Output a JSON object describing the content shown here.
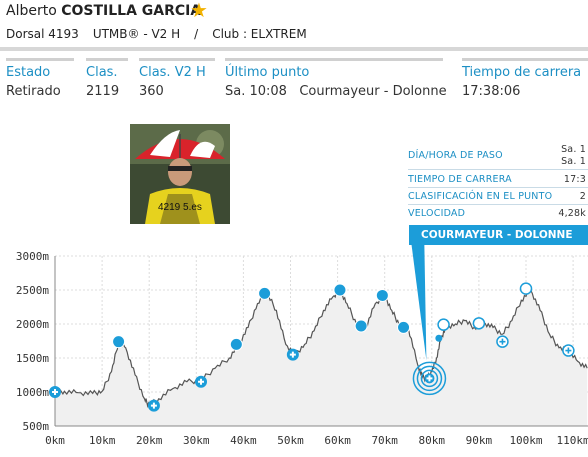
{
  "runner": {
    "first_name": "Alberto",
    "last_name": "COSTILLA GARCIA",
    "dorsal": "Dorsal 4193",
    "race": "UTMB® - V2 H",
    "separator": "/",
    "club": "Club : ELXTREM"
  },
  "stats": [
    {
      "label": "Estado",
      "value": "Retirado"
    },
    {
      "label": "Clas.",
      "value": "2119"
    },
    {
      "label": "Clas. V2 H",
      "value": "360"
    },
    {
      "label": "Último punto",
      "value": "Sa. 10:08   Courmayeur - Dolonne"
    },
    {
      "label": "Tiempo de carrera",
      "value": "17:38:06"
    }
  ],
  "info_panel": {
    "rows": [
      {
        "key": "DÍA/HORA DE PASO",
        "value": "Sa. 1\nSa. 1"
      },
      {
        "key": "TIEMPO DE CARRERA",
        "value": "17:3"
      },
      {
        "key": "CLASIFICACIÓN EN EL PUNTO",
        "value": "2"
      },
      {
        "key": "VELOCIDAD",
        "value": "4,28k"
      }
    ],
    "banner": "COURMAYEUR - DOLONNE"
  },
  "colors": {
    "accent": "#1c9dd9",
    "label_blue": "#1c8fc4",
    "star": "#f2b200"
  },
  "chart_data": {
    "type": "area",
    "title": "",
    "xlabel": "",
    "ylabel": "",
    "xlim": [
      0,
      113
    ],
    "ylim": [
      500,
      3000
    ],
    "y_ticks": [
      "3000m",
      "2500m",
      "2000m",
      "1500m",
      "1000m",
      "500m"
    ],
    "y_tick_values": [
      3000,
      2500,
      2000,
      1500,
      1000,
      500
    ],
    "x_ticks": [
      "0km",
      "10km",
      "20km",
      "30km",
      "40km",
      "50km",
      "60km",
      "70km",
      "80km",
      "90km",
      "100km",
      "110km"
    ],
    "x_tick_values": [
      0,
      10,
      20,
      30,
      40,
      50,
      60,
      70,
      80,
      90,
      100,
      110
    ],
    "series": [
      {
        "x": [
          0,
          2,
          5,
          8,
          10,
          12,
          13.5,
          15,
          17,
          19,
          20,
          22,
          25,
          28,
          31,
          34,
          37,
          39,
          41,
          43,
          45,
          47,
          49,
          51,
          53,
          55,
          57,
          59,
          60.5,
          62,
          64,
          66,
          68,
          70,
          71.5,
          73,
          75,
          77,
          78,
          79,
          80,
          81,
          82,
          83,
          85,
          87,
          89,
          91,
          93,
          95,
          97,
          99,
          101,
          103,
          105,
          107,
          109,
          111,
          113
        ],
        "y": [
          1000,
          1010,
          990,
          980,
          1010,
          1300,
          1740,
          1650,
          1250,
          900,
          800,
          900,
          1050,
          1150,
          1170,
          1350,
          1500,
          1700,
          1950,
          2300,
          2450,
          2200,
          1700,
          1550,
          1700,
          1900,
          2200,
          2400,
          2500,
          2300,
          2000,
          1950,
          2300,
          2420,
          2200,
          2000,
          1950,
          1400,
          1220,
          1200,
          1300,
          1500,
          1800,
          1950,
          2000,
          2050,
          1950,
          2020,
          1950,
          1850,
          2050,
          2350,
          2500,
          2200,
          1850,
          1650,
          1600,
          1450,
          1350
        ]
      }
    ],
    "markers": [
      {
        "x": 0,
        "y": 1000,
        "kind": "plus"
      },
      {
        "x": 13.5,
        "y": 1740,
        "kind": "dot"
      },
      {
        "x": 21,
        "y": 800,
        "kind": "plus"
      },
      {
        "x": 31,
        "y": 1150,
        "kind": "plus"
      },
      {
        "x": 38.5,
        "y": 1700,
        "kind": "dot"
      },
      {
        "x": 44.5,
        "y": 2450,
        "kind": "dot"
      },
      {
        "x": 50.5,
        "y": 1550,
        "kind": "plus"
      },
      {
        "x": 60.5,
        "y": 2500,
        "kind": "dot"
      },
      {
        "x": 65,
        "y": 1970,
        "kind": "dot"
      },
      {
        "x": 69.5,
        "y": 2420,
        "kind": "dot"
      },
      {
        "x": 74,
        "y": 1950,
        "kind": "dot"
      },
      {
        "x": 79.5,
        "y": 1200,
        "kind": "target"
      },
      {
        "x": 81.5,
        "y": 1790,
        "kind": "small"
      },
      {
        "x": 82.5,
        "y": 1990,
        "kind": "open"
      },
      {
        "x": 90,
        "y": 2010,
        "kind": "open"
      },
      {
        "x": 95,
        "y": 1740,
        "kind": "plus_open"
      },
      {
        "x": 100,
        "y": 2520,
        "kind": "open"
      },
      {
        "x": 109,
        "y": 1610,
        "kind": "plus_open"
      }
    ]
  }
}
